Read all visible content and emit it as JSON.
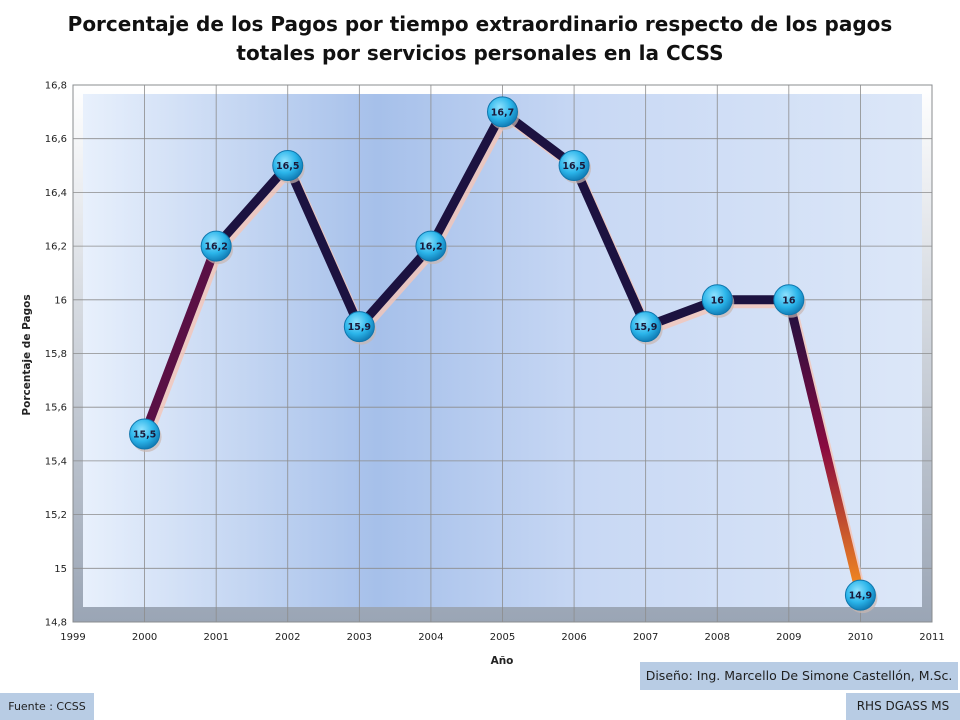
{
  "chart_data": {
    "type": "line",
    "title": "Porcentaje de los Pagos por tiempo extraordinario respecto de los pagos totales por servicios personales en la CCSS",
    "xlabel": "Año",
    "ylabel": "Porcentaje de Pagos",
    "xlim": [
      1999,
      2011
    ],
    "ylim": [
      14.8,
      16.8
    ],
    "x_ticks": [
      1999,
      2000,
      2001,
      2002,
      2003,
      2004,
      2005,
      2006,
      2007,
      2008,
      2009,
      2010,
      2011
    ],
    "y_ticks": [
      14.8,
      15,
      15.2,
      15.4,
      15.6,
      15.8,
      16,
      16.2,
      16.4,
      16.6,
      16.8
    ],
    "y_tick_labels": [
      "14,8",
      "15",
      "15,2",
      "15,4",
      "15,6",
      "15,8",
      "16",
      "16,2",
      "16,4",
      "16,6",
      "16,8"
    ],
    "x": [
      2000,
      2001,
      2002,
      2003,
      2004,
      2005,
      2006,
      2007,
      2008,
      2009,
      2010
    ],
    "values": [
      15.5,
      16.2,
      16.5,
      15.9,
      16.2,
      16.7,
      16.5,
      15.9,
      16.0,
      16.0,
      14.9
    ],
    "data_labels": [
      "15,5",
      "16,2",
      "16,5",
      "15,9",
      "16,2",
      "16,7",
      "16,5",
      "15,9",
      "16",
      "16",
      "14,9"
    ],
    "grid": true,
    "legend": "none"
  },
  "footer": {
    "design": "Diseño: Ing. Marcello De Simone Castellón, M.Sc.",
    "source": "Fuente : CCSS",
    "org": "RHS DGASS MS"
  },
  "colors": {
    "marker": "#29b6e8",
    "line_dark": "#1a1040",
    "line_mid": "#7a0a45",
    "line_end": "#f08020",
    "note_bg": "#b8cce4"
  }
}
